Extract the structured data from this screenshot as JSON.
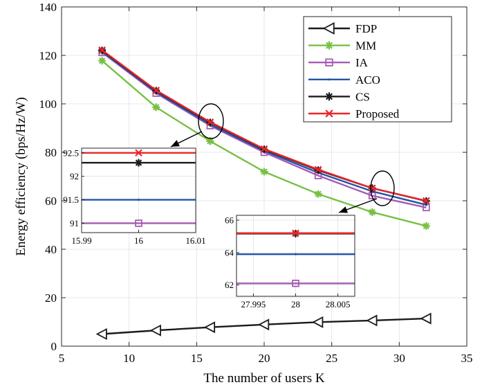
{
  "chart_data": {
    "type": "line",
    "xlabel": "The number of users K",
    "ylabel": "Energy efficiency (bps/Hz/W)",
    "xlim": [
      5,
      35
    ],
    "ylim": [
      0,
      140
    ],
    "xticks": [
      5,
      10,
      15,
      20,
      25,
      30,
      35
    ],
    "yticks": [
      0,
      20,
      40,
      60,
      80,
      100,
      120,
      140
    ],
    "grid": true,
    "legend_position": "top-right",
    "x": [
      8,
      12,
      16,
      20,
      24,
      28,
      32
    ],
    "series": [
      {
        "name": "FDP",
        "color": "#1a1a1a",
        "marker": "triangle-left",
        "values": [
          5.0,
          6.5,
          7.8,
          8.9,
          9.9,
          10.6,
          11.4
        ]
      },
      {
        "name": "MM",
        "color": "#77c043",
        "marker": "asterisk",
        "values": [
          117.8,
          98.6,
          84.6,
          72.0,
          62.8,
          55.3,
          49.6
        ]
      },
      {
        "name": "IA",
        "color": "#a55bb4",
        "marker": "square",
        "values": [
          121.2,
          104.4,
          91.0,
          80.0,
          70.4,
          62.1,
          57.2
        ]
      },
      {
        "name": "ACO",
        "color": "#2154a8",
        "marker": "dot",
        "values": [
          121.6,
          104.9,
          91.5,
          80.6,
          71.6,
          63.9,
          58.3
        ]
      },
      {
        "name": "CS",
        "color": "#1a1a1a",
        "marker": "asterisk",
        "values": [
          122.0,
          105.4,
          92.3,
          81.2,
          72.6,
          65.2,
          59.9
        ]
      },
      {
        "name": "Proposed",
        "color": "#e8262b",
        "marker": "x",
        "values": [
          122.2,
          105.6,
          92.5,
          81.4,
          72.9,
          65.2,
          60.0
        ]
      }
    ],
    "insets": [
      {
        "xlim": [
          15.99,
          16.01
        ],
        "ylim": [
          90.8,
          92.6
        ],
        "xticks": [
          15.99,
          16,
          16.01
        ],
        "xtick_labels": [
          "15.99",
          "16",
          "16.01"
        ],
        "yticks": [
          91,
          91.5,
          92,
          92.5
        ],
        "ytick_labels": [
          "91",
          "91.5",
          "92",
          "92.5"
        ],
        "x_point": 16,
        "values": {
          "IA": 91.0,
          "ACO": 91.5,
          "CS": 92.3,
          "Proposed": 92.5
        }
      },
      {
        "xlim": [
          27.993,
          28.007
        ],
        "ylim": [
          61.3,
          66.3
        ],
        "xticks": [
          27.995,
          28,
          28.005
        ],
        "xtick_labels": [
          "27.995",
          "28",
          "28.005"
        ],
        "yticks": [
          62,
          64,
          66
        ],
        "ytick_labels": [
          "62",
          "64",
          "66"
        ],
        "x_point": 28,
        "values": {
          "IA": 62.1,
          "ACO": 63.9,
          "CS": 65.2,
          "Proposed": 65.2
        }
      }
    ]
  }
}
